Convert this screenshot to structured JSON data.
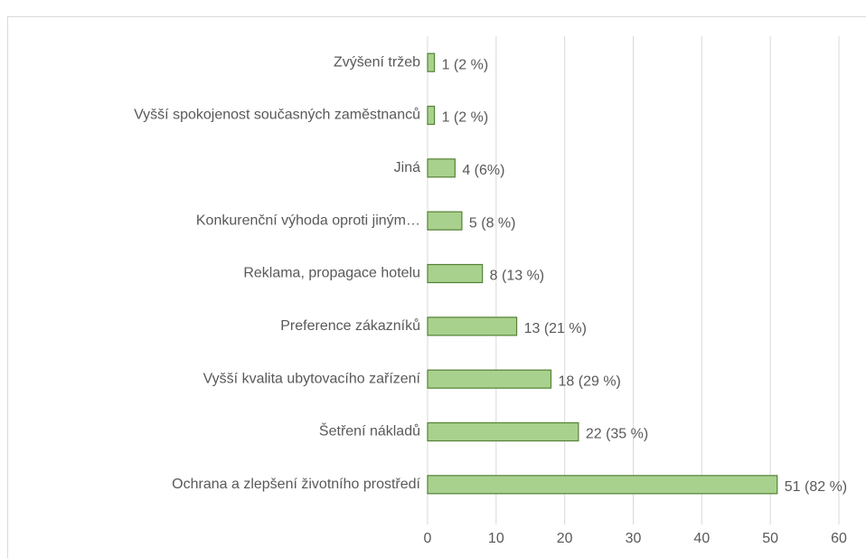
{
  "chart_data": {
    "type": "hbar",
    "categories": [
      "Zvýšení tržeb",
      "Vyšší spokojenost současných zaměstnanců",
      "Jiná",
      "Konkurenční výhoda oproti jiným…",
      "Reklama, propagace hotelu",
      "Preference zákazníků",
      "Vyšší kvalita ubytovacího zařízení",
      "Šetření nákladů",
      "Ochrana a zlepšení životního prostředí"
    ],
    "values": [
      1,
      1,
      4,
      5,
      8,
      13,
      18,
      22,
      51
    ],
    "value_labels": [
      "1 (2 %)",
      "1 (2 %)",
      "4 (6%)",
      "5 (8 %)",
      "8 (13 %)",
      "13 (21 %)",
      "18 (29 %)",
      "22 (35 %)",
      "51 (82 %)"
    ],
    "color": "#a9d18e",
    "edge_color": "#548235",
    "xlim": [
      0,
      60
    ],
    "xticks": [
      0,
      10,
      20,
      30,
      40,
      50,
      60
    ],
    "grid": true
  }
}
